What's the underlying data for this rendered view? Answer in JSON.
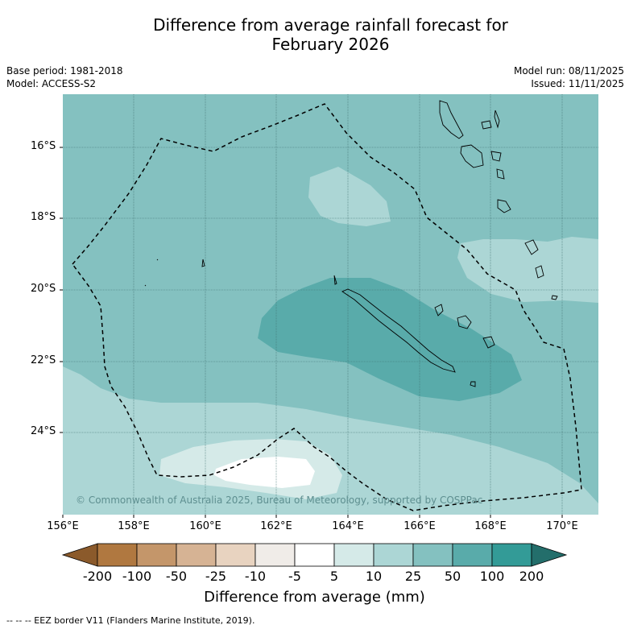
{
  "title": {
    "line1": "Difference from average rainfall forecast for",
    "line2": "February 2026"
  },
  "meta": {
    "base_period": "Base period: 1981-2018",
    "model": "Model: ACCESS-S2",
    "model_run": "Model run: 08/11/2025",
    "issued": "Issued: 11/11/2025"
  },
  "map": {
    "lat_labels": [
      "16°S",
      "18°S",
      "20°S",
      "22°S",
      "24°S"
    ],
    "lon_labels": [
      "156°E",
      "158°E",
      "160°E",
      "162°E",
      "164°E",
      "166°E",
      "168°E",
      "170°E"
    ],
    "copyright": "© Commonwealth of Australia 2025, Bureau of Meteorology, supported by COSPPac",
    "colors": {
      "band_5_10": "#d5eae8",
      "band_10_25": "#acd6d5",
      "band_25_50": "#84c1c0",
      "band_50_100": "#59abaa",
      "band_neg5_5": "#ffffff",
      "eez_line": "#000000"
    }
  },
  "colorbar": {
    "title": "Difference from average (mm)",
    "labels": [
      "-200",
      "-100",
      "-50",
      "-25",
      "-10",
      "-5",
      "5",
      "10",
      "25",
      "50",
      "100",
      "200"
    ],
    "colors": [
      "#8b5a2b",
      "#b07840",
      "#c4966a",
      "#d6b394",
      "#e8d3c0",
      "#f0ece8",
      "#ffffff",
      "#d5eae8",
      "#acd6d5",
      "#84c1c0",
      "#59abaa",
      "#339b97",
      "#236e6b"
    ]
  },
  "footnote": "--  --  -- EEZ border V11 (Flanders Marine Institute, 2019)."
}
